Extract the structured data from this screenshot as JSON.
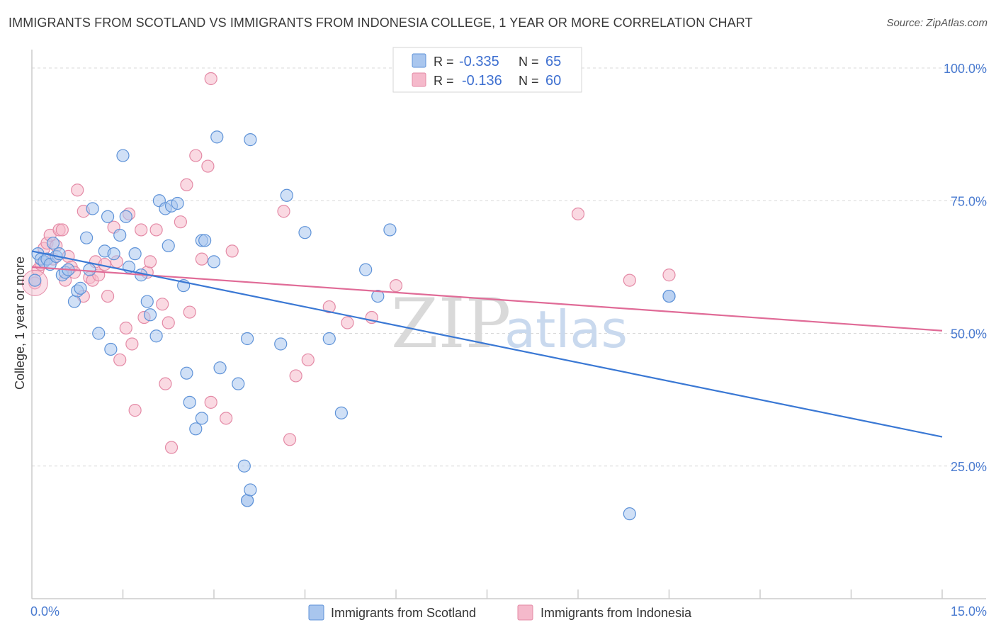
{
  "header": {
    "title": "IMMIGRANTS FROM SCOTLAND VS IMMIGRANTS FROM INDONESIA COLLEGE, 1 YEAR OR MORE CORRELATION CHART",
    "source": "Source: ZipAtlas.com"
  },
  "legend": {
    "r_label": "R =",
    "n_label": "N =",
    "series": [
      {
        "r": "-0.335",
        "n": "65"
      },
      {
        "r": "-0.136",
        "n": "60"
      }
    ]
  },
  "watermark": {
    "zip": "ZIP",
    "atlas": "atlas"
  },
  "colors": {
    "scotland_fill": "#a9c6ee",
    "scotland_stroke": "#5f93d8",
    "scotland_line": "#3a78d4",
    "indonesia_fill": "#f5b9cb",
    "indonesia_stroke": "#e48aa6",
    "indonesia_line": "#e06b97",
    "tick_text": "#4a7bd0",
    "grid": "#d8d8d8"
  },
  "chart_data": {
    "type": "scatter",
    "title": "IMMIGRANTS FROM SCOTLAND VS IMMIGRANTS FROM INDONESIA COLLEGE, 1 YEAR OR MORE CORRELATION CHART",
    "xlabel": "",
    "ylabel": "College, 1 year or more",
    "xlim": [
      0,
      15
    ],
    "ylim": [
      0,
      105
    ],
    "x_ticks": [
      "0.0%",
      "15.0%"
    ],
    "y_ticks": [
      {
        "value": 100,
        "label": "100.0%"
      },
      {
        "value": 75,
        "label": "75.0%"
      },
      {
        "value": 50,
        "label": "50.0%"
      },
      {
        "value": 25,
        "label": "25.0%"
      }
    ],
    "grid": "horizontal dashed",
    "legend_position": "top-center",
    "series": [
      {
        "name": "Immigrants from Scotland",
        "r": -0.335,
        "n": 65,
        "trend": [
          [
            0,
            65.5
          ],
          [
            15,
            30.5
          ]
        ],
        "points": [
          [
            0.05,
            60
          ],
          [
            0.1,
            65
          ],
          [
            0.15,
            64
          ],
          [
            0.2,
            63.5
          ],
          [
            0.25,
            64
          ],
          [
            0.3,
            63
          ],
          [
            0.35,
            67
          ],
          [
            0.4,
            64.5
          ],
          [
            0.45,
            65
          ],
          [
            0.5,
            61
          ],
          [
            0.55,
            61.5
          ],
          [
            0.6,
            62
          ],
          [
            0.7,
            56
          ],
          [
            0.75,
            58
          ],
          [
            0.8,
            58.5
          ],
          [
            0.9,
            68
          ],
          [
            0.95,
            62
          ],
          [
            1.0,
            73.5
          ],
          [
            1.1,
            50
          ],
          [
            1.2,
            65.5
          ],
          [
            1.25,
            72
          ],
          [
            1.3,
            47
          ],
          [
            1.35,
            65
          ],
          [
            1.45,
            68.5
          ],
          [
            1.5,
            83.5
          ],
          [
            1.55,
            72
          ],
          [
            1.6,
            62.5
          ],
          [
            1.7,
            65
          ],
          [
            1.8,
            61
          ],
          [
            1.9,
            56
          ],
          [
            1.95,
            53.5
          ],
          [
            2.05,
            49.5
          ],
          [
            2.1,
            75
          ],
          [
            2.2,
            73.5
          ],
          [
            2.25,
            66.5
          ],
          [
            2.3,
            74
          ],
          [
            2.4,
            74.5
          ],
          [
            2.5,
            59
          ],
          [
            2.55,
            42.5
          ],
          [
            2.6,
            37
          ],
          [
            2.7,
            32
          ],
          [
            2.8,
            34
          ],
          [
            2.8,
            67.5
          ],
          [
            2.85,
            67.5
          ],
          [
            3.0,
            63.5
          ],
          [
            3.05,
            87
          ],
          [
            3.1,
            43.5
          ],
          [
            3.4,
            40.5
          ],
          [
            3.5,
            25
          ],
          [
            3.55,
            49
          ],
          [
            3.6,
            86.5
          ],
          [
            3.55,
            18.5
          ],
          [
            3.55,
            18.5
          ],
          [
            3.6,
            20.5
          ],
          [
            4.1,
            48
          ],
          [
            4.2,
            76
          ],
          [
            4.5,
            69
          ],
          [
            4.9,
            49
          ],
          [
            5.1,
            35
          ],
          [
            5.5,
            62
          ],
          [
            5.7,
            57
          ],
          [
            5.9,
            69.5
          ],
          [
            9.85,
            16
          ],
          [
            10.5,
            57
          ],
          [
            10.5,
            57
          ]
        ]
      },
      {
        "name": "Immigrants from Indonesia",
        "r": -0.136,
        "n": 60,
        "trend": [
          [
            0,
            62.5
          ],
          [
            15,
            50.5
          ]
        ],
        "points": [
          [
            0.05,
            59.5
          ],
          [
            0.1,
            62
          ],
          [
            0.15,
            63
          ],
          [
            0.2,
            66
          ],
          [
            0.25,
            67
          ],
          [
            0.3,
            68.5
          ],
          [
            0.35,
            64
          ],
          [
            0.4,
            66.5
          ],
          [
            0.45,
            69.5
          ],
          [
            0.5,
            69.5
          ],
          [
            0.55,
            60
          ],
          [
            0.6,
            64.5
          ],
          [
            0.65,
            62.5
          ],
          [
            0.7,
            61.5
          ],
          [
            0.75,
            77
          ],
          [
            0.85,
            57
          ],
          [
            0.85,
            73
          ],
          [
            0.95,
            60.5
          ],
          [
            1.0,
            60
          ],
          [
            1.05,
            63.5
          ],
          [
            1.1,
            61
          ],
          [
            1.2,
            63
          ],
          [
            1.25,
            57
          ],
          [
            1.35,
            70
          ],
          [
            1.4,
            63.5
          ],
          [
            1.45,
            45
          ],
          [
            1.55,
            51
          ],
          [
            1.6,
            72.5
          ],
          [
            1.65,
            48
          ],
          [
            1.7,
            35.5
          ],
          [
            1.8,
            69.5
          ],
          [
            1.85,
            53
          ],
          [
            1.9,
            61.5
          ],
          [
            1.95,
            63.5
          ],
          [
            2.05,
            69.5
          ],
          [
            2.15,
            55.5
          ],
          [
            2.2,
            40.5
          ],
          [
            2.25,
            52
          ],
          [
            2.3,
            28.5
          ],
          [
            2.45,
            71
          ],
          [
            2.55,
            78
          ],
          [
            2.6,
            54
          ],
          [
            2.7,
            83.5
          ],
          [
            2.8,
            64
          ],
          [
            2.9,
            81.5
          ],
          [
            2.95,
            98
          ],
          [
            2.95,
            37
          ],
          [
            3.2,
            34
          ],
          [
            3.3,
            65.5
          ],
          [
            4.15,
            73
          ],
          [
            4.25,
            30
          ],
          [
            4.35,
            42
          ],
          [
            4.55,
            45
          ],
          [
            4.9,
            55
          ],
          [
            5.2,
            52
          ],
          [
            5.6,
            53
          ],
          [
            6.0,
            59
          ],
          [
            9.0,
            72.5
          ],
          [
            9.85,
            60
          ],
          [
            10.5,
            61
          ]
        ]
      }
    ]
  },
  "bottom_legend": [
    {
      "label": "Immigrants from Scotland"
    },
    {
      "label": "Immigrants from Indonesia"
    }
  ]
}
